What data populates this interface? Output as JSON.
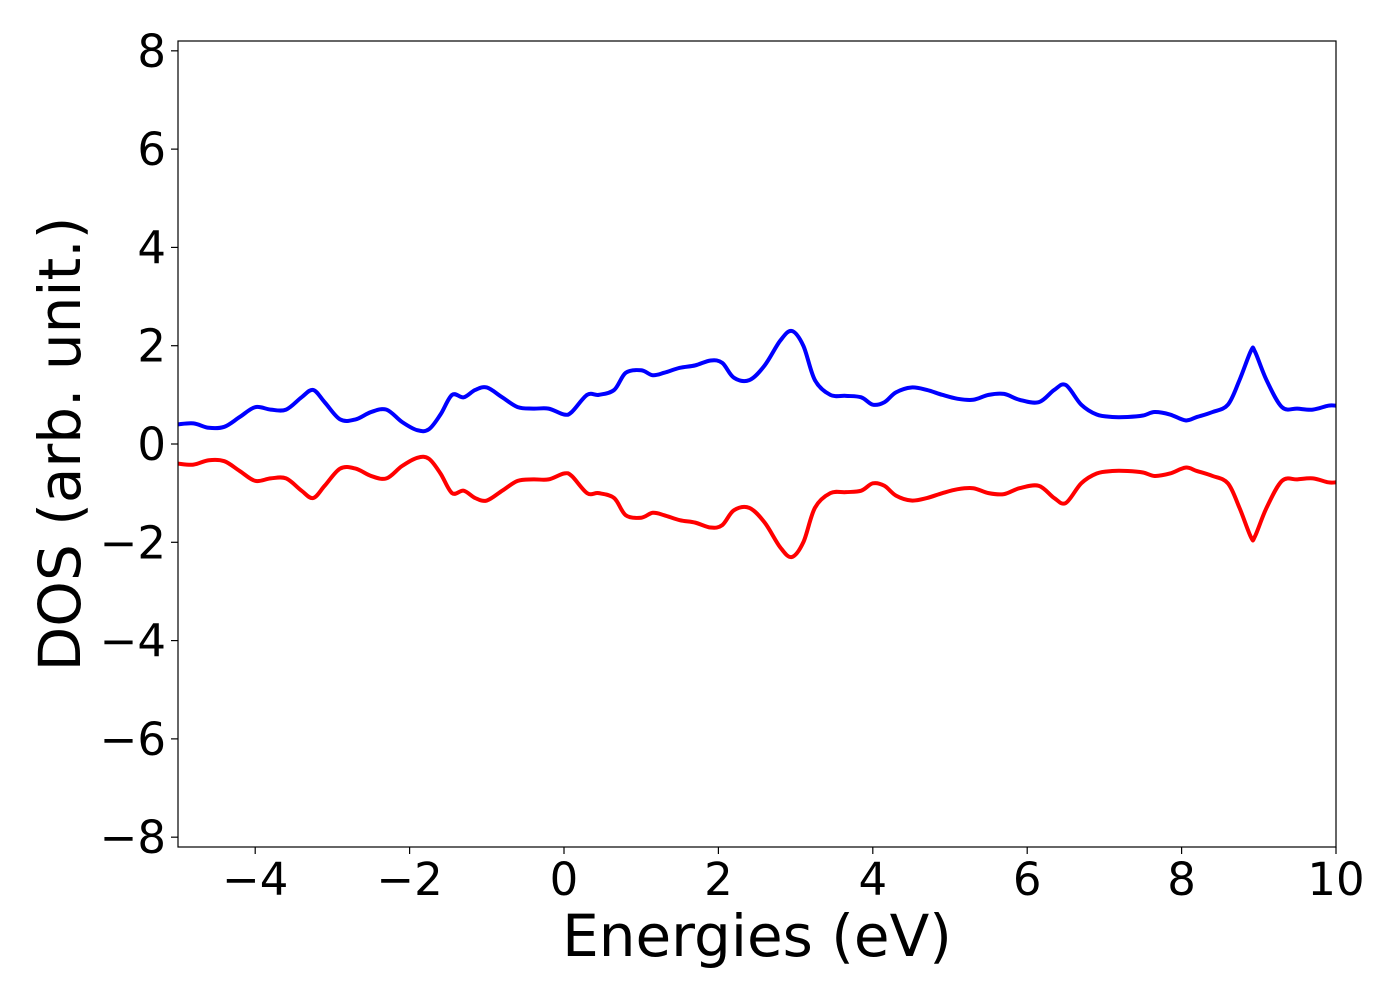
{
  "chart_data": {
    "type": "line",
    "title": "",
    "xlabel": "Energies (eV)",
    "ylabel": "DOS (arb. unit.)",
    "xlim": [
      -5,
      10
    ],
    "ylim": [
      -8.2,
      8.2
    ],
    "x_ticks": [
      -4,
      -2,
      0,
      2,
      4,
      6,
      8,
      10
    ],
    "y_ticks": [
      -8,
      -6,
      -4,
      -2,
      0,
      2,
      4,
      6,
      8
    ],
    "x_tick_labels": [
      "−4",
      "−2",
      "0",
      "2",
      "4",
      "6",
      "8",
      "10"
    ],
    "y_tick_labels": [
      "−8",
      "−6",
      "−4",
      "−2",
      "0",
      "2",
      "4",
      "6",
      "8"
    ],
    "grid": false,
    "legend": "none",
    "series": [
      {
        "color": "#0000ff",
        "x": [
          -5.0,
          -4.8,
          -4.6,
          -4.4,
          -4.2,
          -4.0,
          -3.8,
          -3.6,
          -3.4,
          -3.25,
          -3.1,
          -2.9,
          -2.7,
          -2.5,
          -2.3,
          -2.1,
          -1.9,
          -1.75,
          -1.6,
          -1.45,
          -1.3,
          -1.15,
          -1.0,
          -0.8,
          -0.6,
          -0.4,
          -0.2,
          0.0,
          0.1,
          0.3,
          0.45,
          0.65,
          0.8,
          1.0,
          1.15,
          1.3,
          1.5,
          1.7,
          1.9,
          2.05,
          2.2,
          2.4,
          2.6,
          2.8,
          2.95,
          3.1,
          3.25,
          3.45,
          3.65,
          3.85,
          4.0,
          4.15,
          4.3,
          4.5,
          4.7,
          4.9,
          5.1,
          5.3,
          5.5,
          5.7,
          5.9,
          6.15,
          6.35,
          6.5,
          6.7,
          6.9,
          7.1,
          7.3,
          7.5,
          7.65,
          7.85,
          8.05,
          8.2,
          8.4,
          8.6,
          8.75,
          8.9,
          8.95,
          9.1,
          9.3,
          9.5,
          9.7,
          9.9,
          10.0
        ],
        "y": [
          0.4,
          0.42,
          0.33,
          0.35,
          0.55,
          0.75,
          0.7,
          0.7,
          0.95,
          1.1,
          0.85,
          0.5,
          0.5,
          0.65,
          0.7,
          0.45,
          0.28,
          0.3,
          0.6,
          1.0,
          0.95,
          1.1,
          1.15,
          0.95,
          0.75,
          0.72,
          0.72,
          0.6,
          0.65,
          1.0,
          1.0,
          1.1,
          1.45,
          1.5,
          1.4,
          1.45,
          1.55,
          1.6,
          1.7,
          1.65,
          1.35,
          1.3,
          1.6,
          2.1,
          2.3,
          2.0,
          1.3,
          1.0,
          0.98,
          0.95,
          0.8,
          0.85,
          1.05,
          1.15,
          1.1,
          1.0,
          0.92,
          0.9,
          1.0,
          1.02,
          0.9,
          0.85,
          1.1,
          1.2,
          0.8,
          0.6,
          0.55,
          0.55,
          0.58,
          0.65,
          0.6,
          0.48,
          0.55,
          0.65,
          0.8,
          1.3,
          1.9,
          1.88,
          1.3,
          0.75,
          0.72,
          0.7,
          0.78,
          0.78
        ]
      },
      {
        "color": "#ff0000",
        "x": [
          -5.0,
          -4.8,
          -4.6,
          -4.4,
          -4.2,
          -4.0,
          -3.8,
          -3.6,
          -3.4,
          -3.25,
          -3.1,
          -2.9,
          -2.7,
          -2.5,
          -2.3,
          -2.1,
          -1.9,
          -1.75,
          -1.6,
          -1.45,
          -1.3,
          -1.15,
          -1.0,
          -0.8,
          -0.6,
          -0.4,
          -0.2,
          0.0,
          0.1,
          0.3,
          0.45,
          0.65,
          0.8,
          1.0,
          1.15,
          1.3,
          1.5,
          1.7,
          1.9,
          2.05,
          2.2,
          2.4,
          2.6,
          2.8,
          2.95,
          3.1,
          3.25,
          3.45,
          3.65,
          3.85,
          4.0,
          4.15,
          4.3,
          4.5,
          4.7,
          4.9,
          5.1,
          5.3,
          5.5,
          5.7,
          5.9,
          6.15,
          6.35,
          6.5,
          6.7,
          6.9,
          7.1,
          7.3,
          7.5,
          7.65,
          7.85,
          8.05,
          8.2,
          8.4,
          8.6,
          8.75,
          8.9,
          8.95,
          9.1,
          9.3,
          9.5,
          9.7,
          9.9,
          10.0
        ],
        "y": [
          -0.4,
          -0.42,
          -0.33,
          -0.35,
          -0.55,
          -0.75,
          -0.7,
          -0.7,
          -0.95,
          -1.1,
          -0.85,
          -0.5,
          -0.5,
          -0.65,
          -0.7,
          -0.45,
          -0.28,
          -0.3,
          -0.6,
          -1.0,
          -0.95,
          -1.1,
          -1.15,
          -0.95,
          -0.75,
          -0.72,
          -0.72,
          -0.6,
          -0.65,
          -1.0,
          -1.0,
          -1.1,
          -1.45,
          -1.5,
          -1.4,
          -1.45,
          -1.55,
          -1.6,
          -1.7,
          -1.65,
          -1.35,
          -1.3,
          -1.6,
          -2.1,
          -2.3,
          -2.0,
          -1.3,
          -1.0,
          -0.98,
          -0.95,
          -0.8,
          -0.85,
          -1.05,
          -1.15,
          -1.1,
          -1.0,
          -0.92,
          -0.9,
          -1.0,
          -1.02,
          -0.9,
          -0.85,
          -1.1,
          -1.2,
          -0.8,
          -0.6,
          -0.55,
          -0.55,
          -0.58,
          -0.65,
          -0.6,
          -0.48,
          -0.55,
          -0.65,
          -0.8,
          -1.3,
          -1.9,
          -1.88,
          -1.3,
          -0.75,
          -0.72,
          -0.7,
          -0.78,
          -0.78
        ]
      }
    ]
  }
}
